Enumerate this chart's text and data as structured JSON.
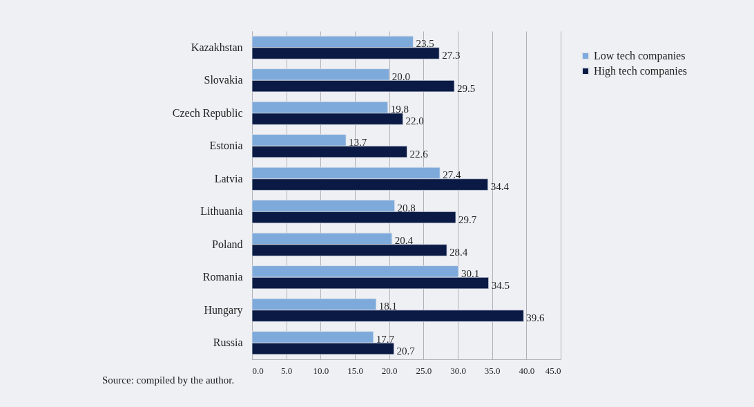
{
  "chart_data": {
    "type": "bar",
    "orientation": "horizontal",
    "categories": [
      "Kazakhstan",
      "Slovakia",
      "Czech Republic",
      "Estonia",
      "Latvia",
      "Lithuania",
      "Poland",
      "Romania",
      "Hungary",
      "Russia"
    ],
    "series": [
      {
        "name": "Low tech companies",
        "color": "#7eaadb",
        "values": [
          23.5,
          20.0,
          19.8,
          13.7,
          27.4,
          20.8,
          20.4,
          30.1,
          18.1,
          17.7
        ],
        "value_labels": [
          "23.5",
          "20.0",
          "19.8",
          "13.7",
          "27.4",
          "20.8",
          "20.4",
          "30.1",
          "18.1",
          "17.7"
        ]
      },
      {
        "name": "High tech companies",
        "color": "#0a1a45",
        "values": [
          27.3,
          29.5,
          22.0,
          22.6,
          34.4,
          29.7,
          28.4,
          34.5,
          39.6,
          20.7
        ],
        "value_labels": [
          "27.3",
          "29.5",
          "22.0",
          "22.6",
          "34.4",
          "29.7",
          "28.4",
          "34.5",
          "39.6",
          "20.7"
        ]
      }
    ],
    "xlim": [
      0,
      45
    ],
    "xticks": [
      {
        "value": 0,
        "label": "0.0"
      },
      {
        "value": 5,
        "label": "5.0"
      },
      {
        "value": 10,
        "label": "10.0"
      },
      {
        "value": 15,
        "label": "15.0"
      },
      {
        "value": 20,
        "label": "20.0"
      },
      {
        "value": 25,
        "label": "25.0"
      },
      {
        "value": 30,
        "label": "30.0"
      },
      {
        "value": 35,
        "label": "35.0"
      },
      {
        "value": 40,
        "label": "40.0"
      },
      {
        "value": 45,
        "label": "45.0"
      }
    ],
    "grid": "x",
    "legend": "top right",
    "annotations": [
      "Source: compiled by the author."
    ]
  }
}
